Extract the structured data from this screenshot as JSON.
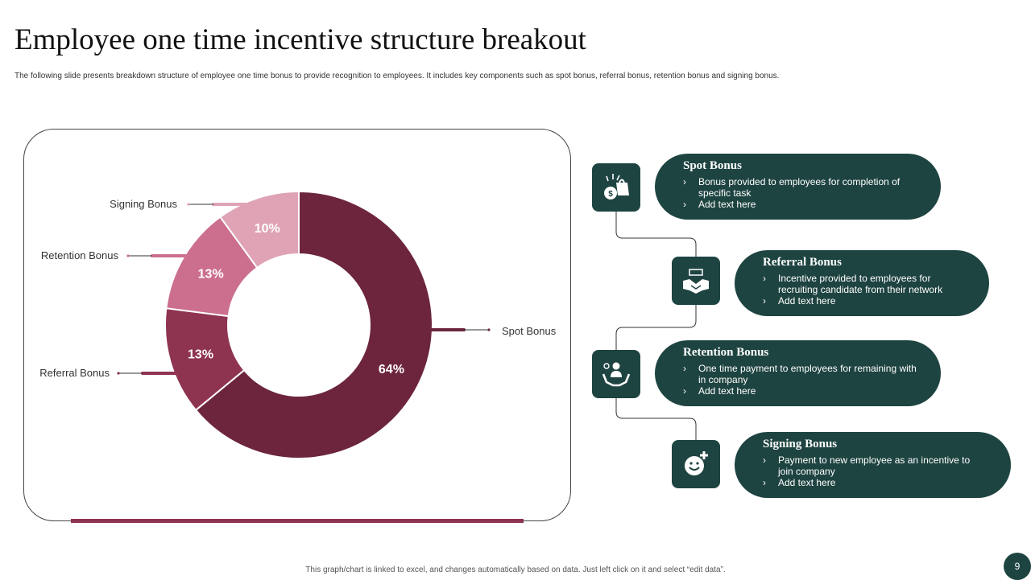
{
  "header": {
    "title": "Employee one time incentive structure breakout",
    "subtitle": "The following slide presents breakdown structure of employee one time bonus to provide recognition to employees. It includes key components such as spot bonus, referral bonus, retention bonus and signing bonus."
  },
  "chart_data": {
    "type": "pie",
    "subtype": "donut",
    "categories": [
      "Spot Bonus",
      "Referral Bonus",
      "Retention Bonus",
      "Signing Bonus"
    ],
    "values": [
      64,
      13,
      13,
      10
    ],
    "value_labels": [
      "64%",
      "13%",
      "13%",
      "10%"
    ],
    "colors": [
      "#6c253c",
      "#8e3350",
      "#cc6f8e",
      "#dfa3b5"
    ],
    "legend": "callout-labels"
  },
  "items": [
    {
      "title": "Spot Bonus",
      "icon": "money-bag-icon",
      "bullets": [
        "Bonus provided to employees for completion of specific task",
        "Add text here"
      ]
    },
    {
      "title": "Referral Bonus",
      "icon": "handshake-icon",
      "bullets": [
        "Incentive provided to employees for recruiting candidate from their network",
        "Add text here"
      ]
    },
    {
      "title": "Retention Bonus",
      "icon": "hands-employee-icon",
      "bullets": [
        "One time payment to  employees for remaining with in company",
        "Add text here"
      ]
    },
    {
      "title": "Signing Bonus",
      "icon": "smiley-plus-icon",
      "bullets": [
        "Payment to new employee as an incentive to join company",
        "Add text here"
      ]
    }
  ],
  "footer": {
    "note": "This graph/chart is linked to excel, and changes automatically based on data. Just left click on it and select “edit data”.",
    "page_number": "9"
  }
}
